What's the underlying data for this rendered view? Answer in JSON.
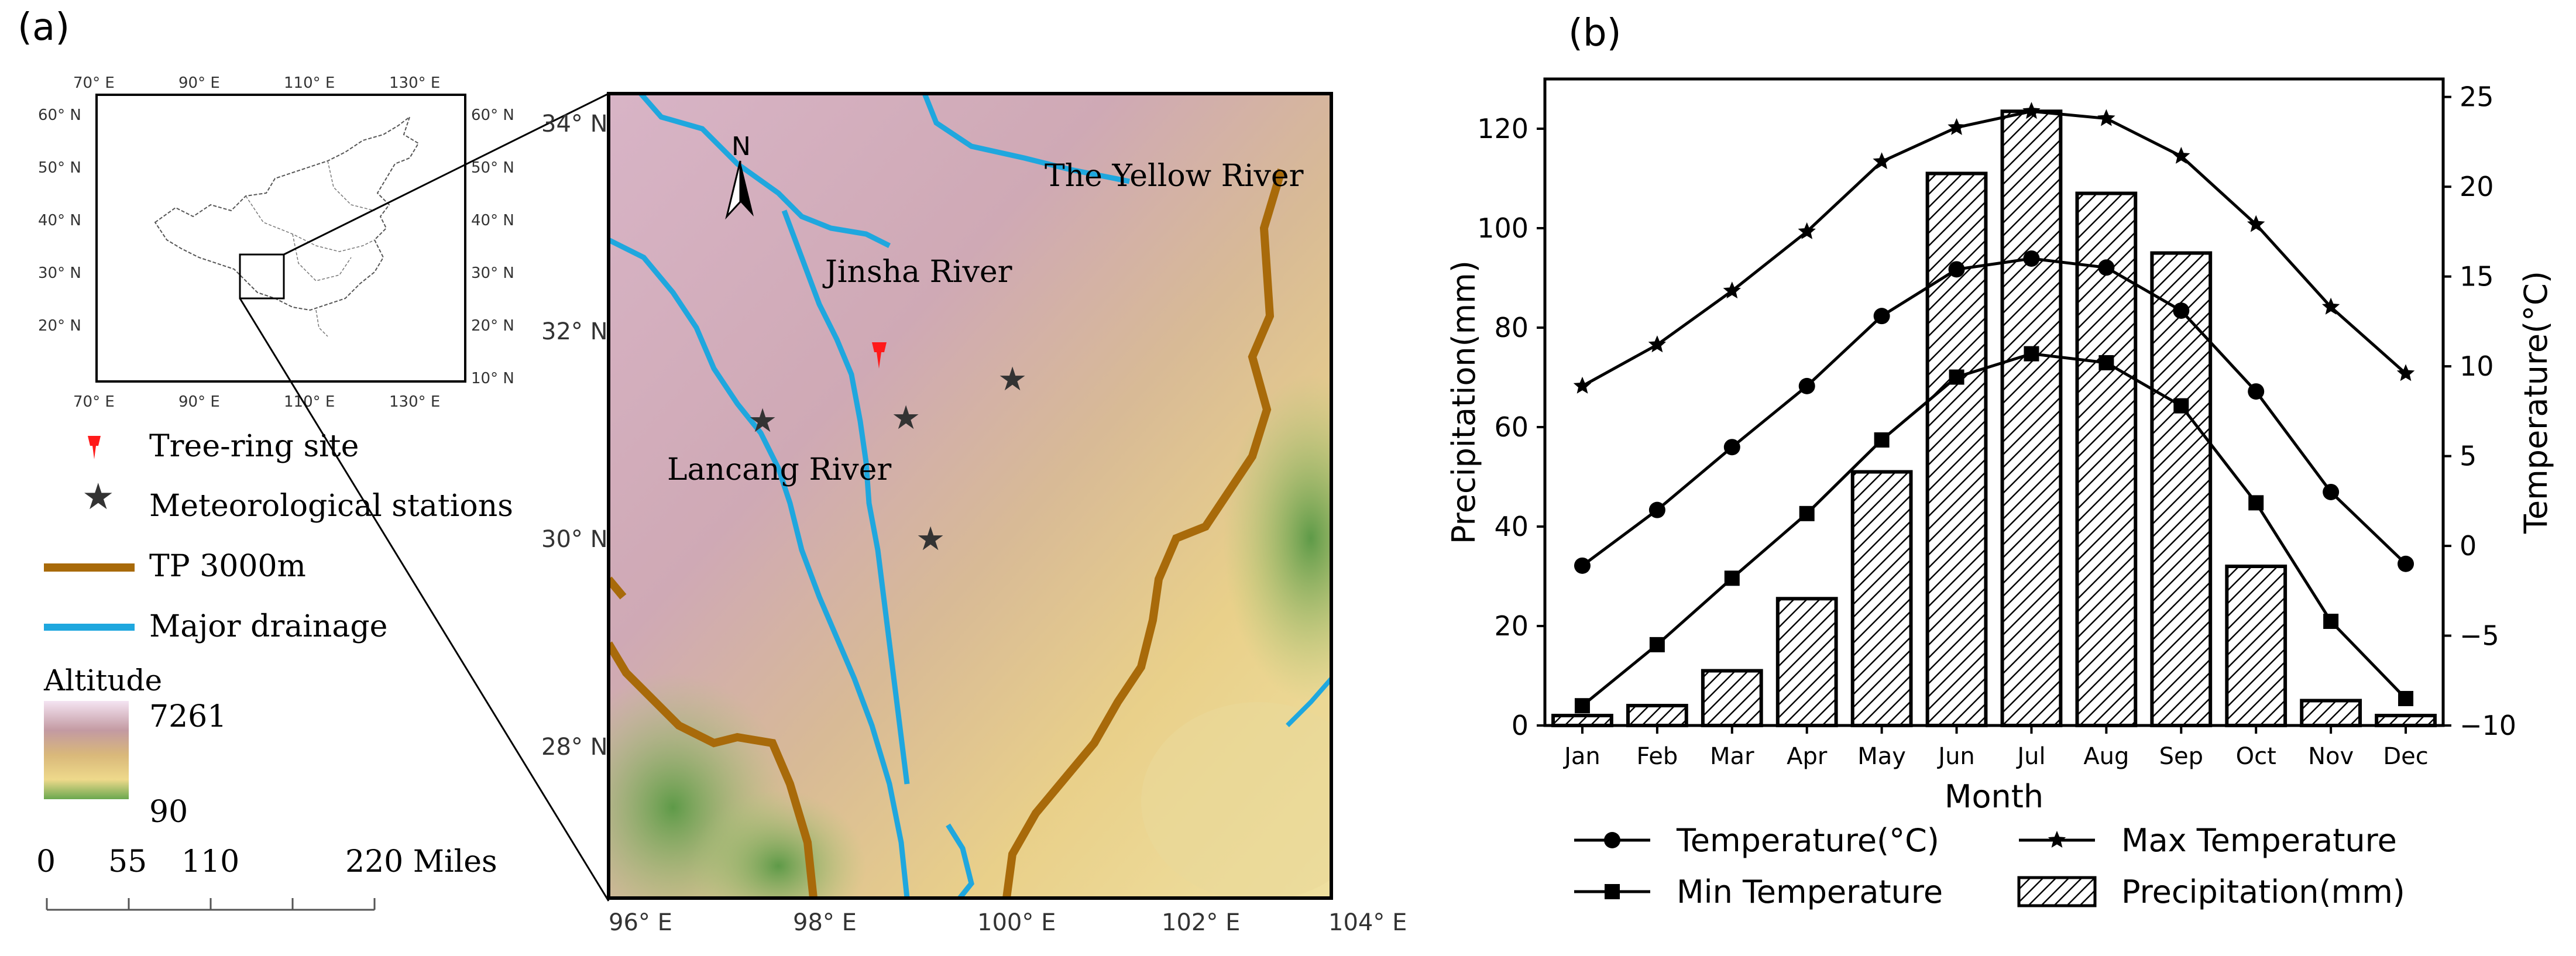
{
  "panel_a": {
    "label": "(a)",
    "inset": {
      "top_ticks": [
        "70° E",
        "90° E",
        "110° E",
        "130° E"
      ],
      "bottom_ticks": [
        "70° E",
        "90° E",
        "110° E",
        "130° E"
      ],
      "left_ticks": [
        "60° N",
        "50° N",
        "40° N",
        "30° N",
        "20° N"
      ],
      "right_ticks": [
        "60° N",
        "50° N",
        "40° N",
        "30° N",
        "20° N",
        "10° N"
      ]
    },
    "legend": {
      "tree_ring": "Tree-ring site",
      "stations": "Meteorological stations",
      "tp": "TP 3000m",
      "drainage": "Major drainage",
      "altitude_title": "Altitude",
      "altitude_max": "7261",
      "altitude_min": "90",
      "scale_ticks": [
        "0",
        "55",
        "110",
        "220 Miles"
      ]
    },
    "map": {
      "north": "N",
      "lat_ticks": [
        "34° N",
        "32° N",
        "30° N",
        "28° N"
      ],
      "lon_ticks": [
        "96° E",
        "98° E",
        "100° E",
        "102° E",
        "104° E"
      ],
      "rivers": [
        "The Yellow River",
        "Jinsha River",
        "Lancang River"
      ],
      "colors": {
        "tp_line": "#a86a0a",
        "river": "#1fa7de",
        "tree_ring": "#ff1a1a",
        "station": "#333333"
      }
    }
  },
  "panel_b": {
    "label": "(b)",
    "chart_data": {
      "type": "bar",
      "categories": [
        "Jan",
        "Feb",
        "Mar",
        "Apr",
        "May",
        "Jun",
        "Jul",
        "Aug",
        "Sep",
        "Oct",
        "Nov",
        "Dec"
      ],
      "xlabel": "Month",
      "ylabel": "Precipitation(mm)",
      "ylabel_right": "Temperature(°C)",
      "ylim": [
        0,
        130
      ],
      "ylim_right": [
        -10,
        26
      ],
      "yticks": [
        0,
        20,
        40,
        60,
        80,
        100,
        120
      ],
      "yticks_right": [
        -10,
        -5,
        0,
        5,
        10,
        15,
        20,
        25
      ],
      "bars": {
        "name": "Precipitation(mm)",
        "values": [
          2,
          4,
          11,
          25.5,
          51,
          111,
          123.5,
          107,
          95,
          32,
          5,
          2
        ]
      },
      "series": [
        {
          "name": "Temperature(°C)",
          "marker": "circle",
          "values": [
            -1.1,
            2.0,
            5.5,
            8.9,
            12.8,
            15.4,
            16.0,
            15.5,
            13.1,
            8.6,
            3.0,
            -1.0
          ]
        },
        {
          "name": "Max Temperature",
          "marker": "star",
          "values": [
            8.9,
            11.2,
            14.2,
            17.5,
            21.4,
            23.3,
            24.2,
            23.8,
            21.7,
            17.9,
            13.3,
            9.6
          ]
        },
        {
          "name": "Min Temperature",
          "marker": "square",
          "values": [
            -8.9,
            -5.5,
            -1.8,
            1.8,
            5.9,
            9.4,
            10.7,
            10.2,
            7.8,
            2.4,
            -4.2,
            -8.5
          ]
        }
      ],
      "legend_placement": "bottom",
      "grid": false
    }
  }
}
